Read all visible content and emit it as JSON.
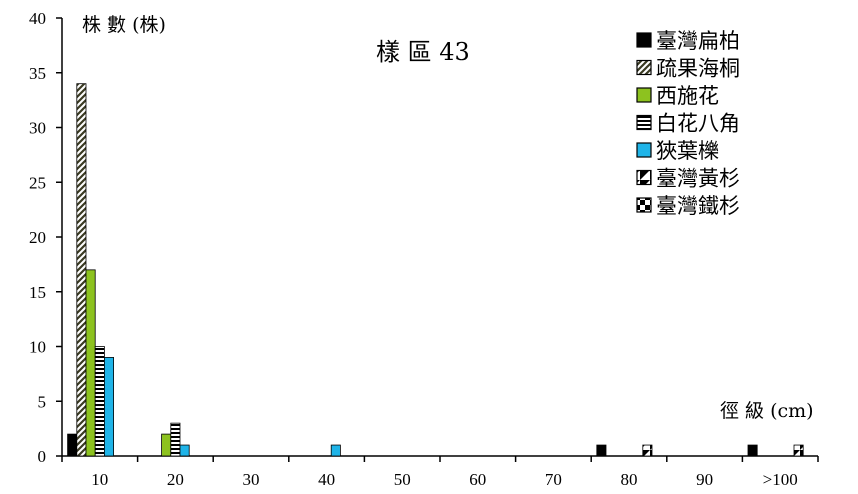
{
  "chart_data": {
    "type": "bar",
    "title": "樣 區 43",
    "xlabel": "徑 級 (cm)",
    "ylabel": "株 數 (株)",
    "ylim": [
      0,
      40
    ],
    "yticks": [
      0,
      5,
      10,
      15,
      20,
      25,
      30,
      35,
      40
    ],
    "categories": [
      "10",
      "20",
      "30",
      "40",
      "50",
      "60",
      "70",
      "80",
      "90",
      ">100"
    ],
    "grid": false,
    "legend_position": "top-right",
    "series": [
      {
        "name": "臺灣扁柏",
        "pattern": "solid-black",
        "color": "#000000",
        "values": [
          2,
          0,
          0,
          0,
          0,
          0,
          0,
          1,
          0,
          1
        ]
      },
      {
        "name": "疏果海桐",
        "pattern": "diagonal-stripes",
        "color": "#4a4a2a",
        "values": [
          34,
          0,
          0,
          0,
          0,
          0,
          0,
          0,
          0,
          0
        ]
      },
      {
        "name": "西施花",
        "pattern": "solid-green",
        "color": "#8dc21f",
        "values": [
          17,
          2,
          0,
          0,
          0,
          0,
          0,
          0,
          0,
          0
        ]
      },
      {
        "name": "白花八角",
        "pattern": "horizontal-stripes",
        "color": "#000000",
        "values": [
          10,
          3,
          0,
          0,
          0,
          0,
          0,
          0,
          0,
          0
        ]
      },
      {
        "name": "狹葉櫟",
        "pattern": "solid-cyan",
        "color": "#1fb4e8",
        "values": [
          9,
          1,
          0,
          1,
          0,
          0,
          0,
          0,
          0,
          0
        ]
      },
      {
        "name": "臺灣黃杉",
        "pattern": "half-diagonal",
        "color": "#000000",
        "values": [
          0,
          0,
          0,
          0,
          0,
          0,
          0,
          1,
          0,
          1
        ]
      },
      {
        "name": "臺灣鐵杉",
        "pattern": "checker",
        "color": "#000000",
        "values": [
          0,
          0,
          0,
          0,
          0,
          0,
          0,
          0,
          0,
          0
        ]
      }
    ]
  }
}
